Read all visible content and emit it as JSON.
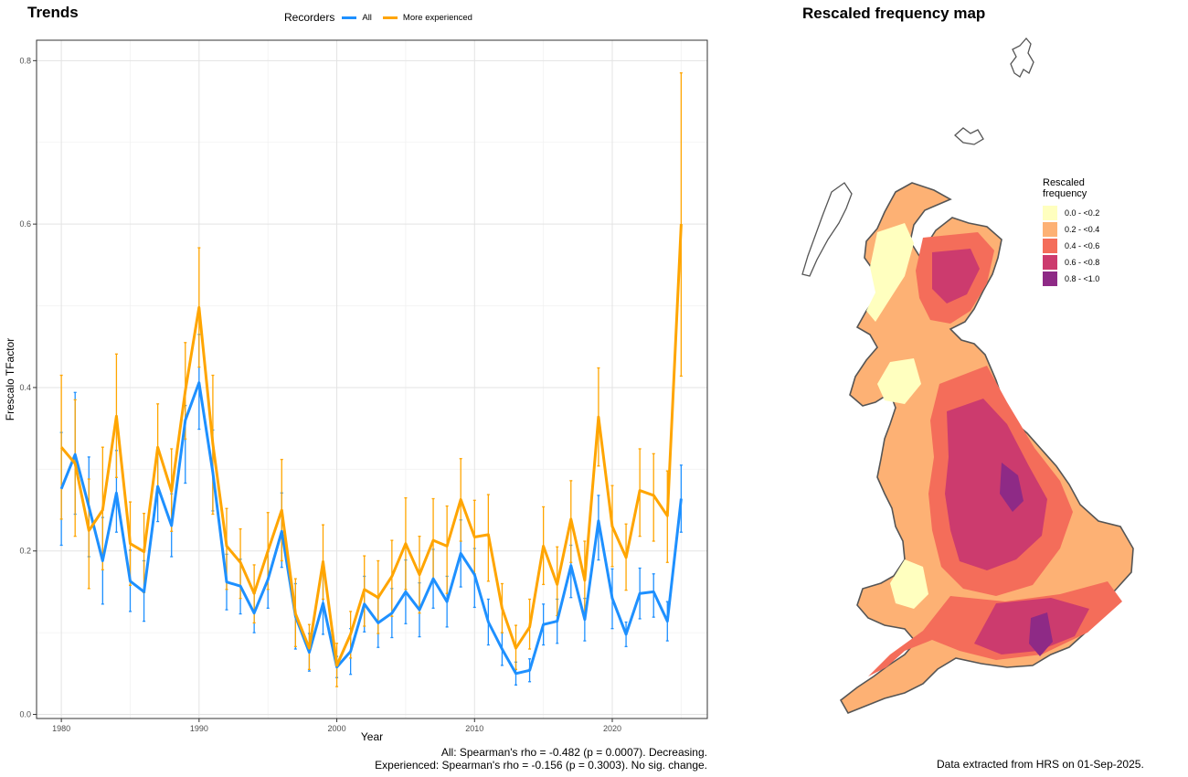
{
  "titles": {
    "trends": "Trends",
    "map": "Rescaled frequency map"
  },
  "legend": {
    "title": "Recorders",
    "items": [
      {
        "label": "All",
        "color": "#1E90FF"
      },
      {
        "label": "More experienced",
        "color": "#FFA500"
      }
    ]
  },
  "chart_data": {
    "type": "line",
    "xlabel": "Year",
    "ylabel": "Frescalo TFactor",
    "xlim": [
      1978.2,
      2026.9
    ],
    "ylim": [
      -0.005,
      0.825
    ],
    "xticks": [
      1980,
      1990,
      2000,
      2010,
      2020
    ],
    "yticks": [
      0.0,
      0.2,
      0.4,
      0.6,
      0.8
    ],
    "ytick_labels": [
      "0.0",
      "0.2",
      "0.4",
      "0.6",
      "0.8"
    ],
    "grid": true,
    "x": [
      1980,
      1981,
      1982,
      1983,
      1984,
      1985,
      1986,
      1987,
      1988,
      1989,
      1990,
      1991,
      1992,
      1993,
      1994,
      1995,
      1996,
      1997,
      1998,
      1999,
      2000,
      2001,
      2002,
      2003,
      2004,
      2005,
      2006,
      2007,
      2008,
      2009,
      2010,
      2011,
      2012,
      2013,
      2014,
      2015,
      2016,
      2017,
      2018,
      2019,
      2020,
      2021,
      2022,
      2023,
      2024,
      2025
    ],
    "series": [
      {
        "name": "All",
        "color": "#1E90FF",
        "values": [
          0.276,
          0.318,
          0.254,
          0.188,
          0.271,
          0.163,
          0.15,
          0.279,
          0.231,
          0.36,
          0.406,
          0.296,
          0.162,
          0.157,
          0.124,
          0.165,
          0.224,
          0.12,
          0.076,
          0.136,
          0.058,
          0.077,
          0.135,
          0.112,
          0.124,
          0.15,
          0.128,
          0.166,
          0.138,
          0.197,
          0.171,
          0.113,
          0.08,
          0.05,
          0.054,
          0.11,
          0.114,
          0.182,
          0.116,
          0.237,
          0.142,
          0.098,
          0.148,
          0.15,
          0.114,
          0.264
        ],
        "lower": [
          0.207,
          0.245,
          0.193,
          0.135,
          0.223,
          0.126,
          0.114,
          0.236,
          0.193,
          0.283,
          0.349,
          0.249,
          0.128,
          0.123,
          0.1,
          0.13,
          0.18,
          0.08,
          0.053,
          0.098,
          0.045,
          0.049,
          0.101,
          0.082,
          0.094,
          0.111,
          0.095,
          0.13,
          0.107,
          0.156,
          0.131,
          0.085,
          0.06,
          0.036,
          0.04,
          0.085,
          0.087,
          0.143,
          0.09,
          0.189,
          0.105,
          0.083,
          0.117,
          0.119,
          0.09,
          0.223
        ],
        "upper": [
          0.345,
          0.394,
          0.315,
          0.241,
          0.323,
          0.201,
          0.188,
          0.323,
          0.27,
          0.378,
          0.465,
          0.348,
          0.196,
          0.19,
          0.148,
          0.199,
          0.271,
          0.16,
          0.099,
          0.173,
          0.071,
          0.105,
          0.169,
          0.142,
          0.154,
          0.189,
          0.161,
          0.202,
          0.169,
          0.238,
          0.203,
          0.141,
          0.1,
          0.064,
          0.068,
          0.135,
          0.141,
          0.207,
          0.142,
          0.268,
          0.178,
          0.113,
          0.179,
          0.172,
          0.138,
          0.305
        ]
      },
      {
        "name": "More experienced",
        "color": "#FFA500",
        "values": [
          0.327,
          0.307,
          0.225,
          0.25,
          0.365,
          0.209,
          0.199,
          0.327,
          0.273,
          0.396,
          0.498,
          0.331,
          0.206,
          0.186,
          0.148,
          0.2,
          0.25,
          0.123,
          0.081,
          0.187,
          0.06,
          0.098,
          0.153,
          0.143,
          0.169,
          0.209,
          0.171,
          0.213,
          0.206,
          0.263,
          0.217,
          0.22,
          0.13,
          0.081,
          0.107,
          0.206,
          0.159,
          0.239,
          0.164,
          0.364,
          0.23,
          0.192,
          0.274,
          0.268,
          0.243,
          0.6
        ],
        "lower": [
          0.239,
          0.218,
          0.154,
          0.177,
          0.29,
          0.158,
          0.149,
          0.271,
          0.224,
          0.337,
          0.425,
          0.245,
          0.153,
          0.142,
          0.112,
          0.153,
          0.188,
          0.083,
          0.055,
          0.141,
          0.034,
          0.069,
          0.108,
          0.099,
          0.12,
          0.153,
          0.124,
          0.163,
          0.148,
          0.212,
          0.172,
          0.163,
          0.1,
          0.055,
          0.08,
          0.159,
          0.121,
          0.186,
          0.119,
          0.304,
          0.181,
          0.152,
          0.218,
          0.212,
          0.186,
          0.414
        ],
        "upper": [
          0.415,
          0.385,
          0.288,
          0.327,
          0.441,
          0.26,
          0.246,
          0.38,
          0.325,
          0.455,
          0.571,
          0.415,
          0.252,
          0.227,
          0.183,
          0.247,
          0.312,
          0.166,
          0.11,
          0.232,
          0.087,
          0.126,
          0.194,
          0.188,
          0.213,
          0.265,
          0.218,
          0.264,
          0.255,
          0.313,
          0.262,
          0.269,
          0.16,
          0.109,
          0.141,
          0.254,
          0.205,
          0.286,
          0.212,
          0.424,
          0.28,
          0.233,
          0.325,
          0.319,
          0.298,
          0.785
        ]
      }
    ]
  },
  "stats": {
    "line1": "All: Spearman's rho = -0.482 (p = 0.0007). Decreasing.",
    "line2": "Experienced: Spearman's rho = -0.156 (p = 0.3003). No sig. change."
  },
  "map_legend": {
    "title_line1": "Rescaled",
    "title_line2": "frequency",
    "bins": [
      {
        "label": "0.0 - <0.2",
        "color": "#FFFFBF"
      },
      {
        "label": "0.2 - <0.4",
        "color": "#FDB174"
      },
      {
        "label": "0.4 - <0.6",
        "color": "#F46D5A"
      },
      {
        "label": "0.6 - <0.8",
        "color": "#CC3B6E"
      },
      {
        "label": "0.8 - <1.0",
        "color": "#8E2A86"
      }
    ]
  },
  "source_note": "Data extracted from HRS on 01-Sep-2025."
}
